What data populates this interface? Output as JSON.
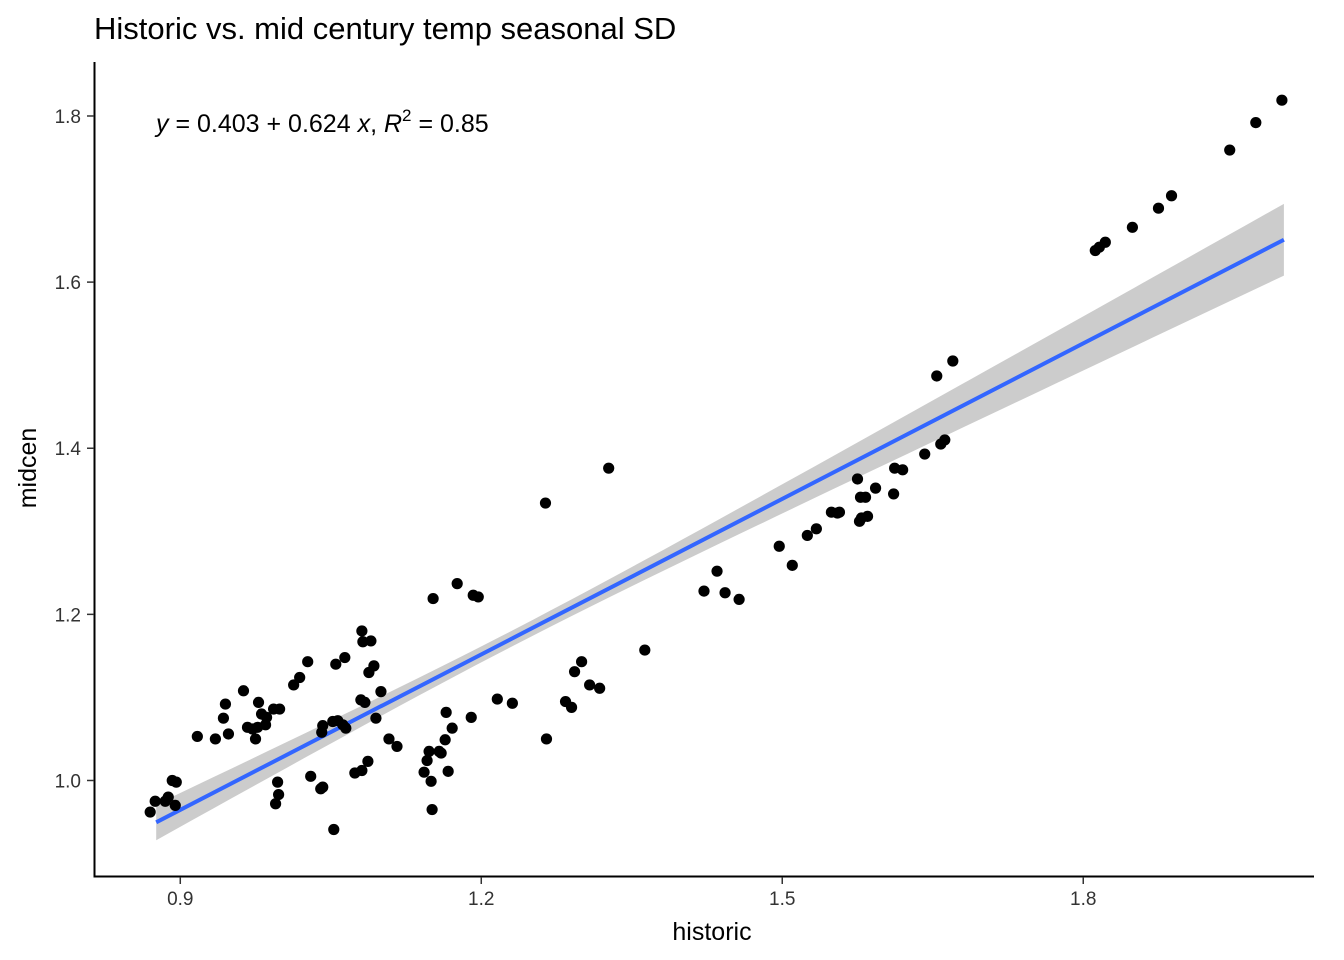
{
  "chart_data": {
    "type": "scatter",
    "title": "Historic vs. mid century temp seasonal SD",
    "xlabel": "historic",
    "ylabel": "midcen",
    "xlim": [
      0.815,
      2.03
    ],
    "ylim": [
      0.885,
      1.865
    ],
    "x_ticks": [
      0.9,
      1.2,
      1.5,
      1.8
    ],
    "x_tick_labels": [
      "0.9",
      "1.2",
      "1.5",
      "1.8"
    ],
    "y_ticks": [
      1.0,
      1.2,
      1.4,
      1.6,
      1.8
    ],
    "y_tick_labels": [
      "1.0",
      "1.2",
      "1.4",
      "1.6",
      "1.8"
    ],
    "grid": false,
    "annotation": {
      "y_var": "y",
      "intercept_text": " = 0.403 + 0.624 ",
      "x_var": "x",
      "sep": ", ",
      "r_var": "R",
      "r_exp": "2",
      "r_value": " = 0.85"
    },
    "fit": {
      "intercept": 0.403,
      "slope": 0.624,
      "r2": 0.85,
      "x_range": [
        0.876,
        2.0
      ],
      "ci_lower": [
        0.922,
        1.612
      ],
      "ci_upper": [
        0.968,
        1.691
      ],
      "line_color": "#3366FF",
      "band_color": "#CCCCCC"
    },
    "point_color": "#000000",
    "points": [
      [
        0.87,
        0.962
      ],
      [
        0.875,
        0.975
      ],
      [
        0.885,
        0.975
      ],
      [
        0.888,
        0.98
      ],
      [
        0.892,
        1.0
      ],
      [
        0.895,
        0.97
      ],
      [
        0.896,
        0.998
      ],
      [
        0.917,
        1.053
      ],
      [
        0.935,
        1.05
      ],
      [
        0.943,
        1.075
      ],
      [
        0.945,
        1.092
      ],
      [
        0.948,
        1.056
      ],
      [
        0.963,
        1.108
      ],
      [
        0.967,
        1.064
      ],
      [
        0.972,
        1.062
      ],
      [
        0.975,
        1.05
      ],
      [
        0.977,
        1.064
      ],
      [
        0.978,
        1.094
      ],
      [
        0.981,
        1.08
      ],
      [
        0.985,
        1.067
      ],
      [
        0.986,
        1.076
      ],
      [
        0.993,
        1.086
      ],
      [
        0.995,
        0.972
      ],
      [
        0.997,
        0.998
      ],
      [
        0.998,
        0.983
      ],
      [
        0.999,
        1.086
      ],
      [
        1.013,
        1.115
      ],
      [
        1.019,
        1.124
      ],
      [
        1.027,
        1.143
      ],
      [
        1.03,
        1.005
      ],
      [
        1.04,
        0.99
      ],
      [
        1.041,
        1.058
      ],
      [
        1.042,
        0.992
      ],
      [
        1.042,
        1.066
      ],
      [
        1.052,
        1.071
      ],
      [
        1.053,
        0.941
      ],
      [
        1.055,
        1.14
      ],
      [
        1.057,
        1.072
      ],
      [
        1.062,
        1.067
      ],
      [
        1.064,
        1.148
      ],
      [
        1.065,
        1.063
      ],
      [
        1.074,
        1.009
      ],
      [
        1.08,
        1.097
      ],
      [
        1.081,
        1.18
      ],
      [
        1.081,
        1.012
      ],
      [
        1.082,
        1.167
      ],
      [
        1.084,
        1.094
      ],
      [
        1.087,
        1.023
      ],
      [
        1.088,
        1.13
      ],
      [
        1.09,
        1.168
      ],
      [
        1.093,
        1.138
      ],
      [
        1.095,
        1.075
      ],
      [
        1.1,
        1.107
      ],
      [
        1.108,
        1.05
      ],
      [
        1.116,
        1.041
      ],
      [
        1.143,
        1.01
      ],
      [
        1.146,
        1.024
      ],
      [
        1.148,
        1.035
      ],
      [
        1.15,
        0.999
      ],
      [
        1.151,
        0.965
      ],
      [
        1.152,
        1.219
      ],
      [
        1.158,
        1.035
      ],
      [
        1.16,
        1.033
      ],
      [
        1.164,
        1.049
      ],
      [
        1.165,
        1.082
      ],
      [
        1.167,
        1.011
      ],
      [
        1.171,
        1.063
      ],
      [
        1.176,
        1.237
      ],
      [
        1.19,
        1.076
      ],
      [
        1.192,
        1.223
      ],
      [
        1.197,
        1.221
      ],
      [
        1.216,
        1.098
      ],
      [
        1.231,
        1.093
      ],
      [
        1.264,
        1.334
      ],
      [
        1.265,
        1.05
      ],
      [
        1.284,
        1.095
      ],
      [
        1.29,
        1.088
      ],
      [
        1.293,
        1.131
      ],
      [
        1.3,
        1.143
      ],
      [
        1.308,
        1.115
      ],
      [
        1.318,
        1.111
      ],
      [
        1.327,
        1.376
      ],
      [
        1.363,
        1.157
      ],
      [
        1.422,
        1.228
      ],
      [
        1.435,
        1.252
      ],
      [
        1.443,
        1.226
      ],
      [
        1.457,
        1.218
      ],
      [
        1.497,
        1.282
      ],
      [
        1.51,
        1.259
      ],
      [
        1.525,
        1.295
      ],
      [
        1.534,
        1.303
      ],
      [
        1.549,
        1.323
      ],
      [
        1.555,
        1.322
      ],
      [
        1.557,
        1.323
      ],
      [
        1.575,
        1.363
      ],
      [
        1.577,
        1.312
      ],
      [
        1.578,
        1.341
      ],
      [
        1.579,
        1.316
      ],
      [
        1.583,
        1.341
      ],
      [
        1.585,
        1.318
      ],
      [
        1.593,
        1.352
      ],
      [
        1.611,
        1.345
      ],
      [
        1.612,
        1.376
      ],
      [
        1.62,
        1.374
      ],
      [
        1.642,
        1.393
      ],
      [
        1.654,
        1.487
      ],
      [
        1.658,
        1.405
      ],
      [
        1.662,
        1.41
      ],
      [
        1.67,
        1.505
      ],
      [
        1.812,
        1.638
      ],
      [
        1.816,
        1.642
      ],
      [
        1.822,
        1.648
      ],
      [
        1.849,
        1.666
      ],
      [
        1.875,
        1.689
      ],
      [
        1.888,
        1.704
      ],
      [
        1.946,
        1.759
      ],
      [
        1.972,
        1.792
      ],
      [
        1.998,
        1.819
      ]
    ]
  }
}
